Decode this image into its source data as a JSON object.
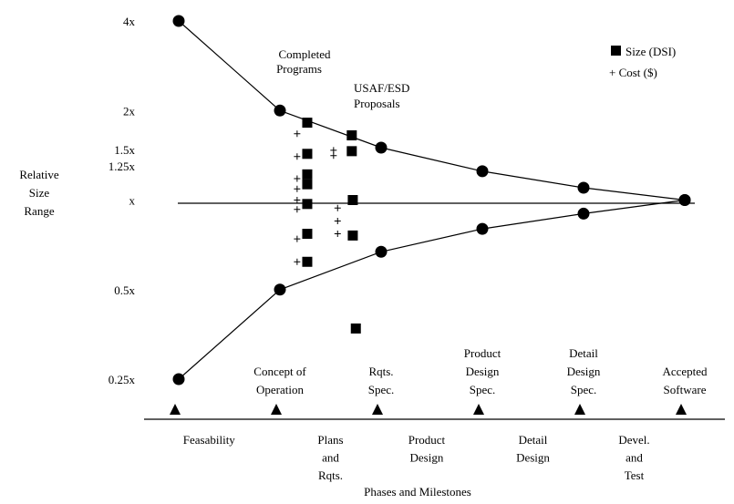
{
  "chart_data": {
    "type": "scatter",
    "y_title_lines": [
      "Relative",
      "Size",
      "Range"
    ],
    "x_title": "Phases and Milestones",
    "y_scale": "log2",
    "y_ticks": [
      {
        "label": "4x",
        "value": 4
      },
      {
        "label": "2x",
        "value": 2
      },
      {
        "label": "1.5x",
        "value": 1.5
      },
      {
        "label": "1.25x",
        "value": 1.25
      },
      {
        "label": "x",
        "value": 1
      },
      {
        "label": "0.5x",
        "value": 0.5
      },
      {
        "label": "0.25x",
        "value": 0.25
      }
    ],
    "milestones": [
      {
        "x": 0,
        "lines": []
      },
      {
        "x": 1,
        "lines": [
          "Concept of",
          "Operation"
        ]
      },
      {
        "x": 2,
        "lines": [
          "Rqts.",
          "Spec."
        ]
      },
      {
        "x": 3,
        "lines": [
          "Product",
          "Design",
          "Spec."
        ]
      },
      {
        "x": 4,
        "lines": [
          "Detail",
          "Design",
          "Spec."
        ]
      },
      {
        "x": 5,
        "lines": [
          "Accepted",
          "Software"
        ]
      }
    ],
    "phases": [
      {
        "x": 0.3,
        "lines": [
          "Feasability"
        ]
      },
      {
        "x": 1.5,
        "lines": [
          "Plans",
          "and",
          "Rqts."
        ]
      },
      {
        "x": 2.45,
        "lines": [
          "Product",
          "Design"
        ]
      },
      {
        "x": 3.5,
        "lines": [
          "Detail",
          "Design"
        ]
      },
      {
        "x": 4.5,
        "lines": [
          "Devel.",
          "and",
          "Test"
        ]
      }
    ],
    "series": [
      {
        "name": "Upper bound",
        "values": [
          [
            0,
            4
          ],
          [
            1,
            2
          ],
          [
            2,
            1.5
          ],
          [
            3,
            1.25
          ],
          [
            4,
            1.1
          ],
          [
            5,
            1
          ]
        ]
      },
      {
        "name": "Lower bound",
        "values": [
          [
            0,
            0.25
          ],
          [
            1,
            0.5
          ],
          [
            2,
            0.67
          ],
          [
            3,
            0.8
          ],
          [
            4,
            0.9
          ],
          [
            5,
            1
          ]
        ]
      },
      {
        "name": "Size (DSI)",
        "marker": "square",
        "values": [
          [
            1.27,
            1.82
          ],
          [
            1.27,
            1.43
          ],
          [
            1.27,
            1.22
          ],
          [
            1.27,
            1.13
          ],
          [
            1.27,
            0.97
          ],
          [
            1.27,
            0.77
          ],
          [
            1.27,
            0.62
          ],
          [
            1.71,
            1.65
          ],
          [
            1.71,
            1.46
          ],
          [
            1.72,
            1.0
          ],
          [
            1.72,
            0.76
          ],
          [
            1.75,
            0.37
          ]
        ]
      },
      {
        "name": "Cost ($)",
        "marker": "plus",
        "values": [
          [
            1.17,
            1.67
          ],
          [
            1.17,
            1.4
          ],
          [
            1.17,
            1.18
          ],
          [
            1.17,
            1.09
          ],
          [
            1.17,
            1.0
          ],
          [
            1.17,
            0.93
          ],
          [
            1.17,
            0.74
          ],
          [
            1.17,
            0.62
          ],
          [
            1.53,
            1.47
          ],
          [
            1.53,
            1.41
          ],
          [
            1.57,
            0.94
          ],
          [
            1.57,
            0.85
          ],
          [
            1.57,
            0.77
          ]
        ]
      }
    ],
    "annotations": [
      {
        "lines": [
          "Completed",
          "Programs"
        ]
      },
      {
        "lines": [
          "USAF/ESD",
          "Proposals"
        ]
      }
    ],
    "legend": {
      "placement": "top-right",
      "items": [
        "Size (DSI)",
        "+ Cost ($)"
      ]
    }
  }
}
